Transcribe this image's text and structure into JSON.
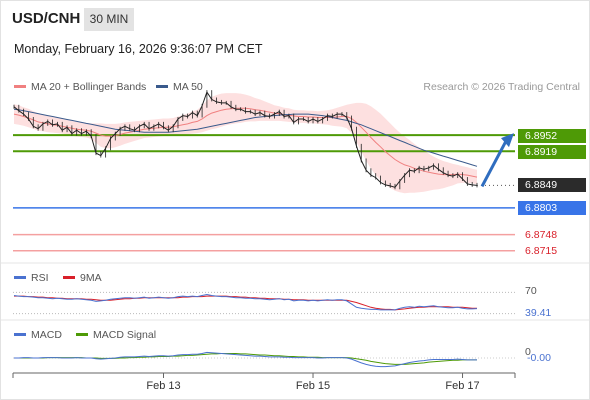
{
  "header": {
    "symbol": "USD/CNH",
    "timeframe": "30 MIN",
    "datetime": "Monday, February 16, 2026 9:36:07 PM CET"
  },
  "legend": {
    "ma20": "MA 20 + Bollinger Bands",
    "ma50": "MA 50",
    "rsi": "RSI",
    "rsi_ma": "9MA",
    "macd": "MACD",
    "macd_signal": "MACD Signal"
  },
  "credit": "Research © 2026 Trading Central",
  "colors": {
    "candle": "#222222",
    "ma20_band_fill": "#fde0e0",
    "ma20_line": "#f08080",
    "ma50_line": "#3a5a8c",
    "resistance": "#4e9a06",
    "support": "#3874e8",
    "support_minor": "#f4a0a0",
    "price": "#2b2b2b",
    "arrow": "#2f6dbf",
    "rsi": "#4a72d0",
    "rsi_ma": "#d9202a",
    "macd": "#4a72d0",
    "macd_signal": "#4e9a06"
  },
  "chart_data": {
    "type": "line",
    "main": {
      "y_range": [
        6.869,
        6.903
      ],
      "resistance_levels": [
        {
          "value": 6.8952,
          "label": "6.8952"
        },
        {
          "value": 6.8919,
          "label": "6.8919"
        }
      ],
      "last_price": {
        "value": 6.8849,
        "label": "6.8849"
      },
      "pivot_support": {
        "value": 6.8803,
        "label": "6.8803"
      },
      "support_levels": [
        {
          "value": 6.8748,
          "label": "6.8748"
        },
        {
          "value": 6.8715,
          "label": "6.8715"
        }
      ],
      "close_series": [
        6.901,
        6.9002,
        6.8995,
        6.8985,
        6.897,
        6.8965,
        6.8975,
        6.898,
        6.8973,
        6.8975,
        6.8962,
        6.8968,
        6.8955,
        6.8962,
        6.8955,
        6.896,
        6.895,
        6.8915,
        6.891,
        6.8925,
        6.8945,
        6.8955,
        6.8965,
        6.897,
        6.8965,
        6.8962,
        6.897,
        6.8975,
        6.8965,
        6.897,
        6.8975,
        6.8968,
        6.8962,
        6.897,
        6.8985,
        6.8992,
        6.899,
        6.8998,
        6.8992,
        6.9012,
        6.904,
        6.9025,
        6.902,
        6.9018,
        6.9018,
        6.901,
        6.9005,
        6.9005,
        6.9,
        6.9,
        6.8995,
        6.8998,
        6.8992,
        6.899,
        6.8995,
        6.9,
        6.899,
        6.8992,
        6.8978,
        6.8985,
        6.8985,
        6.898,
        6.8985,
        6.898,
        6.8985,
        6.8992,
        6.899,
        6.8995,
        6.8995,
        6.8988,
        6.8965,
        6.893,
        6.89,
        6.888,
        6.887,
        6.8865,
        6.8855,
        6.885,
        6.8848,
        6.8845,
        6.8858,
        6.887,
        6.888,
        6.8878,
        6.8885,
        6.8882,
        6.8885,
        6.889,
        6.8882,
        6.8875,
        6.887,
        6.8868,
        6.8872,
        6.8862,
        6.8852,
        6.885,
        6.8849
      ],
      "ma20_series": [
        6.8995,
        6.8993,
        6.899,
        6.8987,
        6.8983,
        6.8979,
        6.8977,
        6.8975,
        6.8973,
        6.8972,
        6.897,
        6.8968,
        6.8966,
        6.8964,
        6.8963,
        6.8962,
        6.896,
        6.8956,
        6.8952,
        6.895,
        6.895,
        6.8951,
        6.8953,
        6.8956,
        6.8958,
        6.896,
        6.8962,
        6.8964,
        6.8965,
        6.8966,
        6.8967,
        6.8968,
        6.8968,
        6.8969,
        6.8971,
        6.8973,
        6.8975,
        6.8978,
        6.898,
        6.8985,
        6.8992,
        6.8997,
        6.9,
        6.9003,
        6.9005,
        6.9006,
        6.9007,
        6.9007,
        6.9007,
        6.9006,
        6.9004,
        6.9003,
        6.9001,
        6.8999,
        6.8997,
        6.8996,
        6.8994,
        6.8993,
        6.8991,
        6.899,
        6.899,
        6.8989,
        6.8989,
        6.8988,
        6.8988,
        6.8988,
        6.8988,
        6.8989,
        6.899,
        6.899,
        6.8986,
        6.8978,
        6.8968,
        6.8958,
        6.8947,
        6.8937,
        6.8928,
        6.8918,
        6.891,
        6.8902,
        6.8896,
        6.8891,
        6.8888,
        6.8884,
        6.8881,
        6.8878,
        6.8876,
        6.8874,
        6.8872,
        6.8871,
        6.8871,
        6.8871,
        6.8872,
        6.8871,
        6.887,
        6.8868,
        6.8866
      ],
      "bb_width_series": [
        0.002,
        0.002,
        0.0019,
        0.0019,
        0.0018,
        0.0018,
        0.0017,
        0.0017,
        0.0016,
        0.0016,
        0.0015,
        0.0015,
        0.0015,
        0.0015,
        0.0015,
        0.0015,
        0.0016,
        0.002,
        0.0024,
        0.0025,
        0.0025,
        0.0024,
        0.0023,
        0.0022,
        0.0021,
        0.002,
        0.0019,
        0.0018,
        0.0018,
        0.0018,
        0.0018,
        0.0018,
        0.0018,
        0.0018,
        0.0019,
        0.002,
        0.0021,
        0.0023,
        0.0024,
        0.0027,
        0.0031,
        0.0033,
        0.0034,
        0.0034,
        0.0033,
        0.0032,
        0.0031,
        0.003,
        0.0028,
        0.0026,
        0.0024,
        0.0022,
        0.002,
        0.0018,
        0.0016,
        0.0015,
        0.0014,
        0.0014,
        0.0013,
        0.0013,
        0.0013,
        0.0013,
        0.0013,
        0.0013,
        0.0014,
        0.0015,
        0.0017,
        0.0019,
        0.0021,
        0.0024,
        0.003,
        0.004,
        0.005,
        0.0058,
        0.0064,
        0.0067,
        0.0068,
        0.0068,
        0.0066,
        0.0064,
        0.0061,
        0.0058,
        0.0054,
        0.005,
        0.0046,
        0.0042,
        0.0038,
        0.0034,
        0.0031,
        0.0028,
        0.0025,
        0.0022,
        0.0019,
        0.0017,
        0.0016,
        0.0015,
        0.0015
      ],
      "ma50_series": [
        6.9005,
        6.9004,
        6.9002,
        6.9,
        6.8998,
        6.8996,
        6.8994,
        6.8992,
        6.899,
        6.8988,
        6.8986,
        6.8984,
        6.8982,
        6.898,
        6.8978,
        6.8976,
        6.8974,
        6.8972,
        6.897,
        6.8968,
        6.8966,
        6.8964,
        6.8963,
        6.8962,
        6.8961,
        6.896,
        6.8959,
        6.8958,
        6.8958,
        6.8958,
        6.8958,
        6.8958,
        6.8958,
        6.8959,
        6.896,
        6.8961,
        6.8962,
        6.8963,
        6.8964,
        6.8966,
        6.8968,
        6.897,
        6.8972,
        6.8974,
        6.8976,
        6.8978,
        6.898,
        6.8982,
        6.8984,
        6.8986,
        6.8988,
        6.8989,
        6.899,
        6.8991,
        6.8992,
        6.8993,
        6.8994,
        6.8994,
        6.8995,
        6.8995,
        6.8995,
        6.8995,
        6.8994,
        6.8993,
        6.8992,
        6.899,
        6.8988,
        6.8986,
        6.8984,
        6.8982,
        6.8979,
        6.8976,
        6.8973,
        6.8969,
        6.8965,
        6.8961,
        6.8957,
        6.8953,
        6.8949,
        6.8945,
        6.8941,
        6.8937,
        6.8933,
        6.8929,
        6.8925,
        6.8921,
        6.8918,
        6.8915,
        6.8912,
        6.8909,
        6.8906,
        6.8903,
        6.89,
        6.8897,
        6.8894,
        6.8891,
        6.8888
      ],
      "forecast_arrow": {
        "from": 6.8849,
        "to": 6.8952
      }
    },
    "rsi": {
      "y_range": [
        20,
        80
      ],
      "level_label": "70",
      "level": 70,
      "last_value_label": "39.41",
      "last_value": 39.41,
      "series": [
        64,
        63,
        62,
        62,
        61,
        60,
        60,
        59,
        58,
        59,
        58,
        57,
        57,
        58,
        57,
        56,
        55,
        53,
        54,
        55,
        57,
        58,
        59,
        60,
        60,
        59,
        60,
        61,
        59,
        60,
        61,
        60,
        59,
        60,
        62,
        63,
        62,
        63,
        62,
        64,
        66,
        64,
        63,
        62,
        62,
        61,
        60,
        60,
        59,
        59,
        58,
        58,
        57,
        56,
        57,
        58,
        56,
        57,
        54,
        55,
        55,
        54,
        55,
        54,
        55,
        56,
        55,
        56,
        56,
        54,
        48,
        42,
        40,
        39,
        38,
        38,
        37,
        37,
        37,
        37,
        40,
        42,
        43,
        42,
        44,
        43,
        44,
        45,
        43,
        42,
        41,
        41,
        42,
        40,
        39,
        39,
        39.41
      ],
      "ma_series": [
        63,
        63,
        63,
        62,
        62,
        61,
        61,
        60,
        60,
        59,
        59,
        58,
        58,
        58,
        58,
        57,
        57,
        56,
        55,
        55,
        55,
        56,
        57,
        58,
        58,
        59,
        59,
        60,
        60,
        60,
        60,
        60,
        60,
        60,
        60,
        61,
        61,
        62,
        62,
        62,
        63,
        63,
        63,
        63,
        63,
        62,
        62,
        61,
        61,
        60,
        60,
        59,
        59,
        58,
        58,
        58,
        57,
        57,
        56,
        56,
        56,
        55,
        55,
        55,
        55,
        55,
        55,
        55,
        55,
        55,
        53,
        51,
        48,
        45,
        42,
        40,
        39,
        38,
        38,
        37,
        38,
        39,
        40,
        41,
        42,
        42,
        43,
        43,
        43,
        43,
        43,
        42,
        42,
        42,
        41,
        40,
        40
      ]
    },
    "macd": {
      "y_range": [
        -0.004,
        0.004
      ],
      "zero_label": "-0.00",
      "level_label": "0",
      "macd_series": [
        0.0,
        0.0,
        0.0001,
        0.0001,
        0.0,
        0.0,
        0.0001,
        0.0001,
        0.0001,
        0.0001,
        0.0,
        0.0,
        0.0,
        0.0001,
        0.0,
        0.0,
        0.0,
        -0.0002,
        -0.0003,
        -0.0002,
        -0.0001,
        0.0,
        0.0002,
        0.0003,
        0.0003,
        0.0003,
        0.0004,
        0.0005,
        0.0004,
        0.0005,
        0.0006,
        0.0006,
        0.0005,
        0.0006,
        0.0008,
        0.0009,
        0.0009,
        0.001,
        0.001,
        0.0012,
        0.0015,
        0.0014,
        0.0013,
        0.0012,
        0.0011,
        0.001,
        0.0009,
        0.0008,
        0.0007,
        0.0006,
        0.0005,
        0.0005,
        0.0004,
        0.0003,
        0.0003,
        0.0003,
        0.0002,
        0.0002,
        0.0001,
        0.0001,
        0.0001,
        0.0001,
        0.0001,
        0.0,
        0.0,
        0.0001,
        0.0001,
        0.0001,
        0.0001,
        0.0,
        -0.0003,
        -0.0008,
        -0.0013,
        -0.0017,
        -0.002,
        -0.0022,
        -0.0023,
        -0.0023,
        -0.0022,
        -0.0021,
        -0.0018,
        -0.0015,
        -0.0012,
        -0.001,
        -0.0008,
        -0.0007,
        -0.0005,
        -0.0004,
        -0.0004,
        -0.0004,
        -0.0004,
        -0.0004,
        -0.0003,
        -0.0004,
        -0.0005,
        -0.0005,
        -0.0005
      ],
      "signal_series": [
        0.0,
        0.0,
        0.0,
        0.0,
        0.0,
        0.0,
        0.0,
        0.0001,
        0.0001,
        0.0001,
        0.0001,
        0.0001,
        0.0001,
        0.0001,
        0.0001,
        0.0,
        0.0,
        0.0,
        -0.0001,
        -0.0001,
        -0.0001,
        -0.0001,
        0.0,
        0.0,
        0.0001,
        0.0001,
        0.0002,
        0.0002,
        0.0003,
        0.0003,
        0.0004,
        0.0004,
        0.0004,
        0.0005,
        0.0005,
        0.0006,
        0.0007,
        0.0007,
        0.0008,
        0.0009,
        0.001,
        0.0011,
        0.0011,
        0.0012,
        0.0012,
        0.0012,
        0.0012,
        0.0011,
        0.0011,
        0.001,
        0.0009,
        0.0008,
        0.0008,
        0.0007,
        0.0006,
        0.0006,
        0.0005,
        0.0004,
        0.0004,
        0.0003,
        0.0003,
        0.0002,
        0.0002,
        0.0002,
        0.0001,
        0.0001,
        0.0001,
        0.0001,
        0.0001,
        0.0001,
        0.0,
        -0.0002,
        -0.0004,
        -0.0006,
        -0.0009,
        -0.0011,
        -0.0013,
        -0.0015,
        -0.0016,
        -0.0017,
        -0.0017,
        -0.0017,
        -0.0016,
        -0.0015,
        -0.0014,
        -0.0013,
        -0.0011,
        -0.001,
        -0.0009,
        -0.0008,
        -0.0007,
        -0.0006,
        -0.0006,
        -0.0005,
        -0.0005,
        -0.0005,
        -0.0005
      ]
    },
    "x_axis": {
      "tick_labels": [
        "Feb 13",
        "Feb 15",
        "Feb 17"
      ],
      "tick_bar_index": [
        31,
        62,
        93
      ]
    },
    "grid": false
  }
}
